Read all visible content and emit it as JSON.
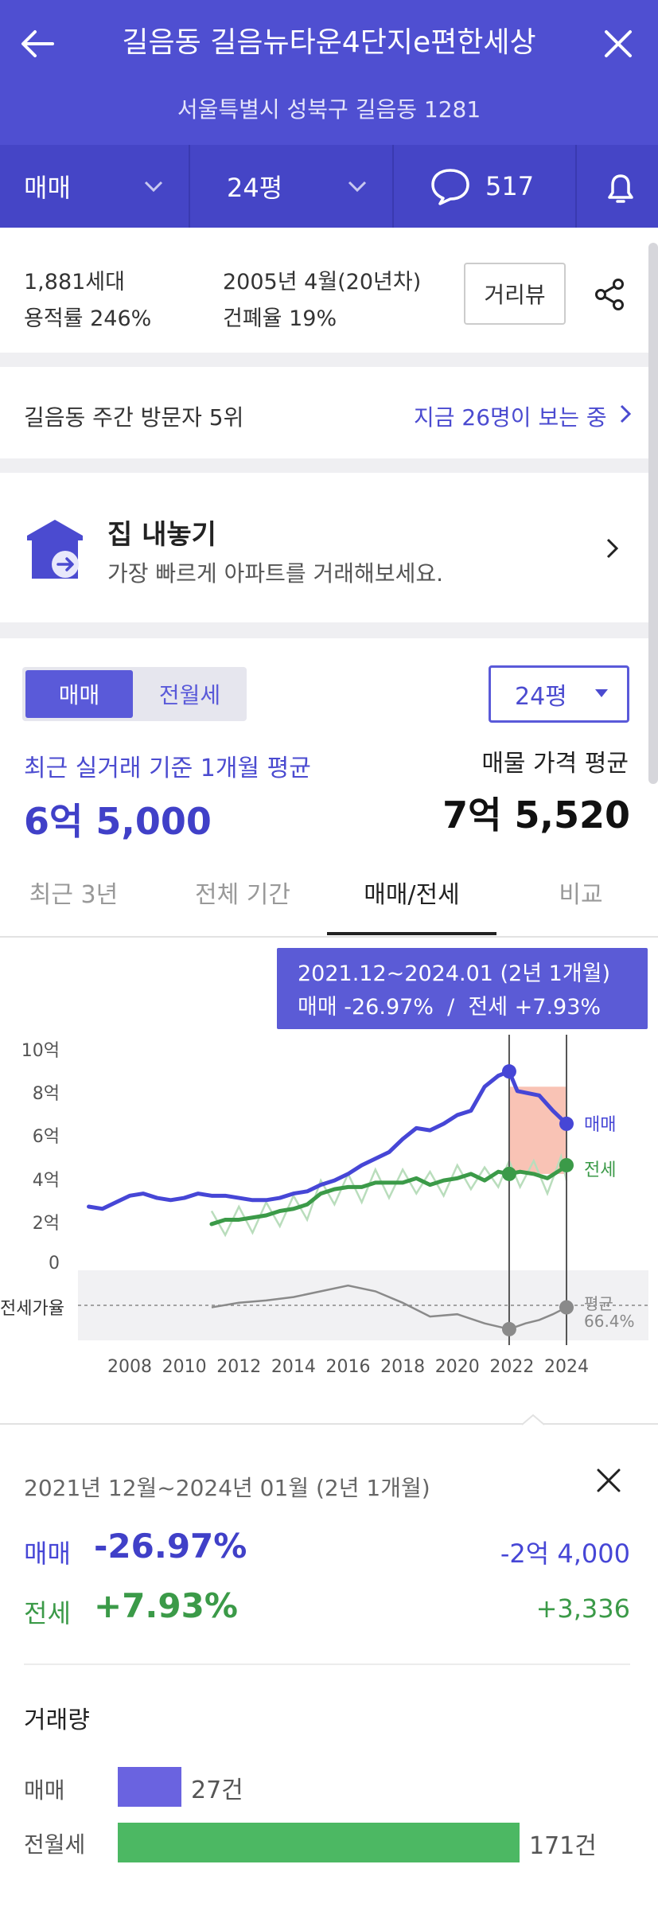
{
  "header": {
    "title": "길음동 길음뉴타운4단지e편한세상",
    "address": "서울특별시 성북구 길음동 1281"
  },
  "tabs": {
    "deal_type": "매매",
    "size": "24평",
    "comment_count": "517"
  },
  "info": {
    "households": "1,881세대",
    "floor_area_ratio": "용적률 246%",
    "built": "2005년 4월(20년차)",
    "coverage_ratio": "건폐율 19%",
    "street_view": "거리뷰"
  },
  "visitors": {
    "rank": "길음동 주간 방문자 5위",
    "now_viewing": "지금 26명이 보는 중"
  },
  "listing_banner": {
    "title": "집 내놓기",
    "subtitle": "가장 빠르게 아파트를 거래해보세요."
  },
  "price": {
    "toggle_on": "매매",
    "toggle_off": "전월세",
    "size_select": "24평",
    "recent_label": "최근 실거래 기준 1개월 평균",
    "recent_value": "6억 5,000",
    "listing_label": "매물 가격 평균",
    "listing_value": "7억 5,520"
  },
  "period_tabs": [
    "최근 3년",
    "전체 기간",
    "매매/전세",
    "비교"
  ],
  "tooltip": {
    "range": "2021.12~2024.01 (2년 1개월)",
    "summary": "매매 -26.97%  /  전세 +7.93%"
  },
  "chart_data": {
    "type": "line",
    "ylabel": "",
    "ylim": [
      0,
      10
    ],
    "yticks": [
      "10억",
      "8억",
      "6억",
      "4억",
      "2억",
      "0"
    ],
    "xticks": [
      "2008",
      "2010",
      "2012",
      "2014",
      "2016",
      "2018",
      "2020",
      "2022",
      "2024"
    ],
    "series": [
      {
        "name": "매매",
        "color": "#4646d6",
        "x": [
          2006.5,
          2007.0,
          2007.5,
          2008.0,
          2008.5,
          2009.0,
          2009.5,
          2010.0,
          2010.5,
          2011.0,
          2011.5,
          2012.0,
          2012.5,
          2013.0,
          2013.5,
          2014.0,
          2014.5,
          2015.0,
          2015.5,
          2016.0,
          2016.5,
          2017.0,
          2017.5,
          2018.0,
          2018.5,
          2019.0,
          2019.5,
          2020.0,
          2020.5,
          2021.0,
          2021.5,
          2021.9,
          2022.2,
          2022.6,
          2023.0,
          2023.5,
          2024.0
        ],
        "y": [
          2.7,
          2.6,
          2.9,
          3.2,
          3.3,
          3.1,
          3.0,
          3.1,
          3.3,
          3.2,
          3.2,
          3.1,
          3.0,
          3.0,
          3.1,
          3.3,
          3.4,
          3.7,
          3.9,
          4.2,
          4.6,
          4.9,
          5.2,
          5.8,
          6.3,
          6.2,
          6.5,
          6.9,
          7.1,
          8.2,
          8.7,
          8.9,
          8.0,
          7.9,
          7.8,
          7.1,
          6.5
        ]
      },
      {
        "name": "전세",
        "color": "#3b9a48",
        "x": [
          2011.0,
          2011.5,
          2012.0,
          2012.5,
          2013.0,
          2013.5,
          2014.0,
          2014.5,
          2015.0,
          2015.5,
          2016.0,
          2016.5,
          2017.0,
          2017.5,
          2018.0,
          2018.5,
          2019.0,
          2019.5,
          2020.0,
          2020.5,
          2021.0,
          2021.5,
          2021.9,
          2022.3,
          2022.8,
          2023.3,
          2023.8,
          2024.0
        ],
        "y": [
          1.9,
          2.1,
          2.1,
          2.2,
          2.3,
          2.5,
          2.6,
          2.8,
          3.3,
          3.5,
          3.6,
          3.6,
          3.8,
          3.8,
          3.8,
          4.0,
          3.7,
          3.9,
          4.0,
          4.2,
          3.9,
          4.3,
          4.2,
          4.3,
          4.2,
          4.0,
          4.4,
          4.6
        ]
      }
    ],
    "series_labels": [
      "매매",
      "전세"
    ],
    "selection": {
      "start": 2021.9,
      "end": 2024.0
    },
    "jeonse_ratio": {
      "label": "전세가율",
      "avg_label": "평균",
      "avg_value": "66.4%",
      "x": [
        2011.0,
        2012.0,
        2013.0,
        2014.0,
        2015.0,
        2016.0,
        2017.0,
        2018.0,
        2019.0,
        2020.0,
        2021.0,
        2021.9,
        2022.5,
        2023.0,
        2023.5,
        2024.0
      ],
      "y": [
        66,
        70,
        72,
        75,
        80,
        85,
        80,
        70,
        58,
        60,
        52,
        47,
        52,
        55,
        60,
        66
      ]
    },
    "grid": false
  },
  "detail": {
    "range": "2021년 12월~2024년 01월 (2년 1개월)",
    "sale_label": "매매",
    "sale_pct": "-26.97%",
    "sale_amount": "-2억 4,000",
    "jeonse_label": "전세",
    "jeonse_pct": "+7.93%",
    "jeonse_amount": "+3,336"
  },
  "volume": {
    "title": "거래량",
    "sale_label": "매매",
    "sale_count": "27건",
    "sale_value": 27,
    "rent_label": "전월세",
    "rent_count": "171건",
    "rent_value": 171
  }
}
